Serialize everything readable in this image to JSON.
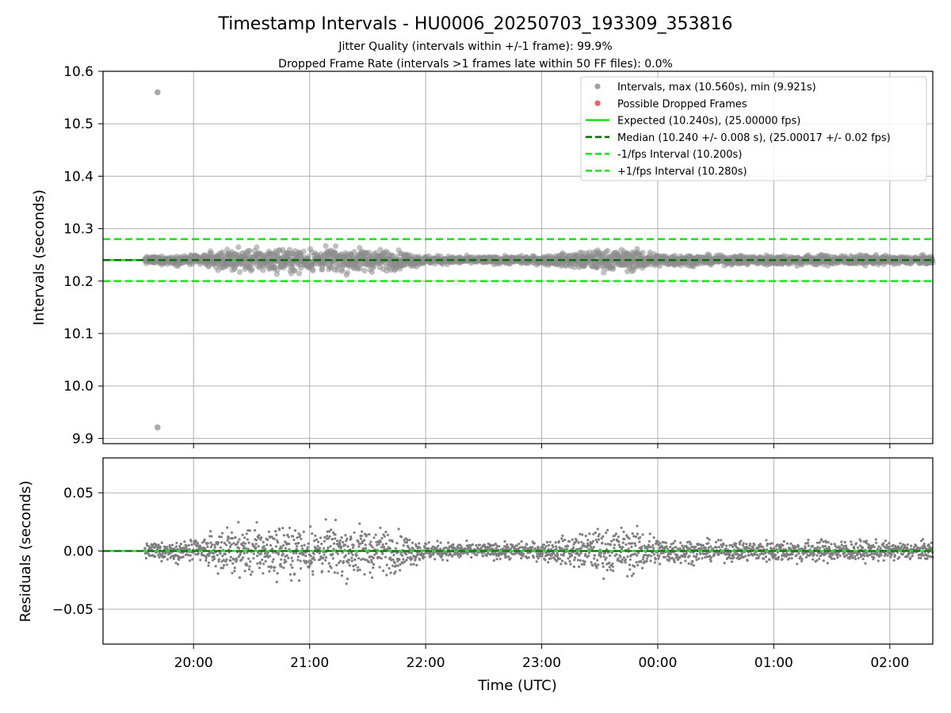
{
  "chart_data": {
    "type": "scatter",
    "title": "Timestamp Intervals - HU0006_20250703_193309_353816",
    "subtitles": [
      "Jitter Quality (intervals within +/-1 frame): 99.9%",
      "Dropped Frame Rate (intervals >1 frames late within 50 FF files): 0.0%"
    ],
    "xlabel": "Time (UTC)",
    "x_tick_labels": [
      "20:00",
      "21:00",
      "22:00",
      "23:00",
      "00:00",
      "01:00",
      "02:00"
    ],
    "x_tick_hours": [
      20,
      21,
      22,
      23,
      24,
      25,
      26
    ],
    "xlim_hours": [
      19.22,
      26.37
    ],
    "data_start_hours": 19.58,
    "data_end_hours": 26.37,
    "grid": true,
    "top_panel": {
      "ylabel": "Intervals (seconds)",
      "ylim": [
        9.89,
        10.6
      ],
      "y_ticks": [
        9.9,
        10.0,
        10.1,
        10.2,
        10.3,
        10.4,
        10.5,
        10.6
      ],
      "y_tick_labels": [
        "9.9",
        "10.0",
        "10.1",
        "10.2",
        "10.3",
        "10.4",
        "10.5",
        "10.6"
      ],
      "expected": 10.24,
      "median": 10.24,
      "minus_1fps": 10.2,
      "plus_1fps": 10.28,
      "max_point": {
        "x_hours": 19.69,
        "y": 10.56
      },
      "min_point": {
        "x_hours": 19.69,
        "y": 9.921
      },
      "legend": {
        "placement": "top-right",
        "entries": [
          {
            "label": "Intervals, max (10.560s), min (9.921s)",
            "kind": "dot",
            "color": "#a0a0a0"
          },
          {
            "label": "Possible Dropped Frames",
            "kind": "dot",
            "color": "#ef6060"
          },
          {
            "label": "Expected (10.240s), (25.00000 fps)",
            "kind": "solid",
            "color": "#22e022"
          },
          {
            "label": "Median (10.240 +/- 0.008 s), (25.00017 +/- 0.02 fps)",
            "kind": "dashed",
            "color": "#0b6b0b"
          },
          {
            "label": "-1/fps Interval (10.200s)",
            "kind": "dashed",
            "color": "#22e022"
          },
          {
            "label": "+1/fps Interval (10.280s)",
            "kind": "dashed",
            "color": "#22e022"
          }
        ]
      }
    },
    "bottom_panel": {
      "ylabel": "Residuals (seconds)",
      "ylim": [
        -0.08,
        0.08
      ],
      "y_ticks": [
        -0.05,
        0.0,
        0.05
      ],
      "y_tick_labels": [
        "−0.05",
        "0.00",
        "0.05"
      ],
      "zero_line": 0.0
    },
    "noise_envelope": {
      "note_hours": [
        19.58,
        20.0,
        20.3,
        20.6,
        21.0,
        21.5,
        21.8,
        22.0,
        22.5,
        23.0,
        23.5,
        23.8,
        24.0,
        24.5,
        25.0,
        25.5,
        26.0,
        26.37
      ],
      "amplitude_s": [
        0.004,
        0.006,
        0.012,
        0.014,
        0.013,
        0.014,
        0.01,
        0.005,
        0.004,
        0.005,
        0.012,
        0.013,
        0.008,
        0.005,
        0.006,
        0.006,
        0.005,
        0.005
      ]
    },
    "colors": {
      "points": "#7f7f7f",
      "points_top": "#8c8c8c",
      "expected": "#22e022",
      "median": "#0b6b0b",
      "bounds": "#22e022",
      "grid": "#b0b0b0",
      "dropped": "#ef6060"
    }
  }
}
